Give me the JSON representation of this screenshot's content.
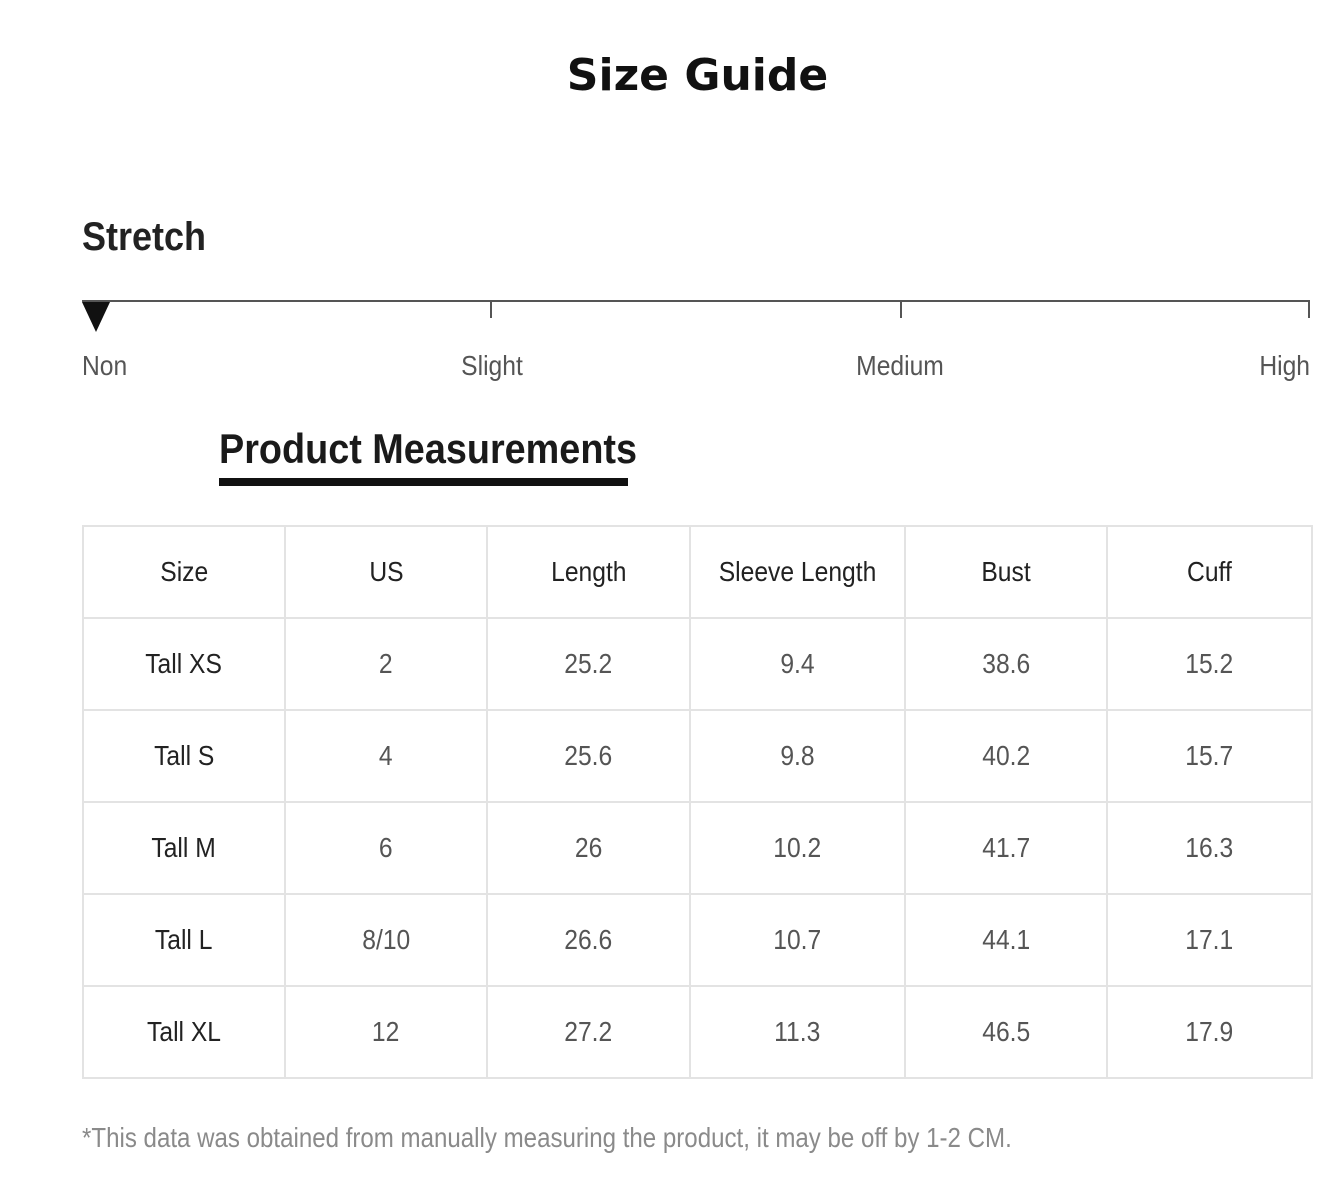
{
  "title": "Size Guide",
  "stretch": {
    "heading": "Stretch",
    "levels": [
      "Non",
      "Slight",
      "Medium",
      "High"
    ],
    "selected": "Non"
  },
  "measurements": {
    "heading": "Product Measurements",
    "columns": [
      "Size",
      "US",
      "Length",
      "Sleeve Length",
      "Bust",
      "Cuff"
    ],
    "rows": [
      [
        "Tall XS",
        "2",
        "25.2",
        "9.4",
        "38.6",
        "15.2"
      ],
      [
        "Tall S",
        "4",
        "25.6",
        "9.8",
        "40.2",
        "15.7"
      ],
      [
        "Tall M",
        "6",
        "26",
        "10.2",
        "41.7",
        "16.3"
      ],
      [
        "Tall L",
        "8/10",
        "26.6",
        "10.7",
        "44.1",
        "17.1"
      ],
      [
        "Tall XL",
        "12",
        "27.2",
        "11.3",
        "46.5",
        "17.9"
      ]
    ]
  },
  "footnote": "*This data was obtained from manually measuring the product, it may be off by 1-2 CM."
}
